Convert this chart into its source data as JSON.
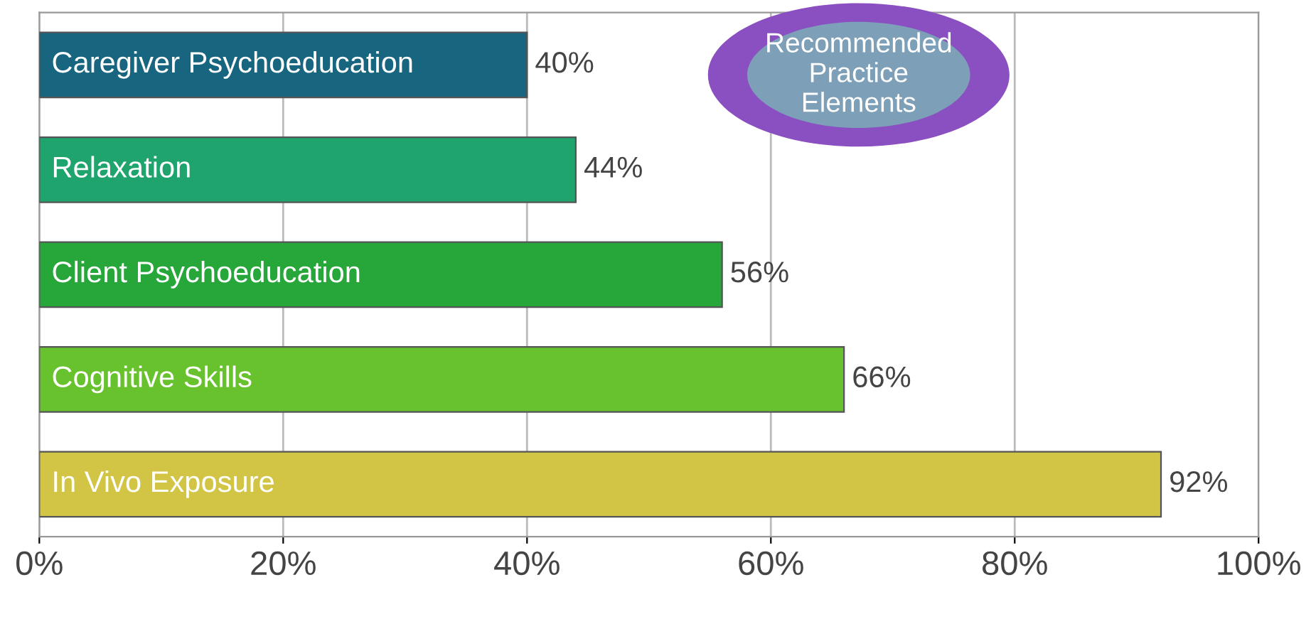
{
  "chart_data": {
    "type": "bar",
    "orientation": "horizontal",
    "categories": [
      "Caregiver Psychoeducation",
      "Relaxation",
      "Client Psychoeducation",
      "Cognitive Skills",
      "In Vivo Exposure"
    ],
    "values": [
      40,
      44,
      56,
      66,
      92
    ],
    "colors": [
      "#17657f",
      "#1ea46c",
      "#27a63a",
      "#68c22e",
      "#d2c444"
    ],
    "value_labels": [
      "40%",
      "44%",
      "56%",
      "66%",
      "92%"
    ],
    "xlim": [
      0,
      100
    ],
    "xticks": [
      {
        "value": 0,
        "label": "0%"
      },
      {
        "value": 20,
        "label": "20%"
      },
      {
        "value": 40,
        "label": "40%"
      },
      {
        "value": 60,
        "label": "60%"
      },
      {
        "value": 80,
        "label": "80%"
      },
      {
        "value": 100,
        "label": "100%"
      }
    ],
    "grid": "x",
    "annotations": [
      "Recommended Practice Elements"
    ]
  }
}
